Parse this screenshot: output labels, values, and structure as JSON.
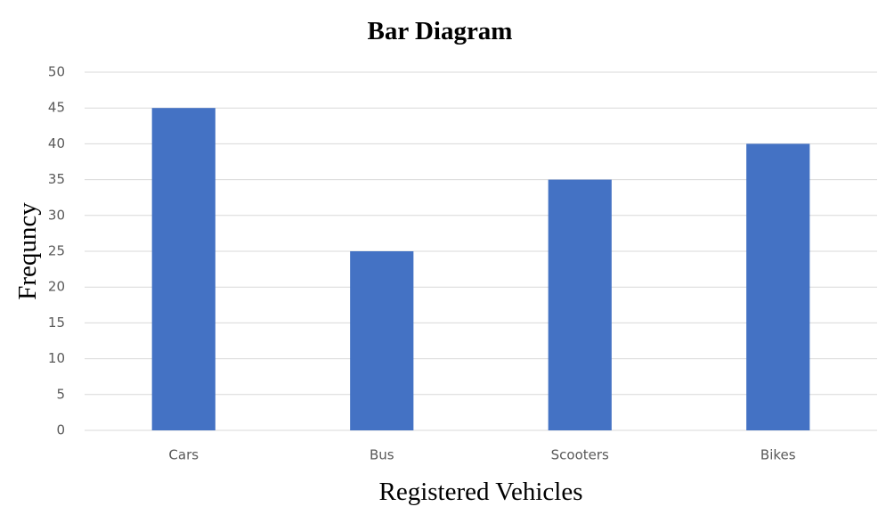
{
  "chart_data": {
    "type": "bar",
    "title": "Bar Diagram",
    "x_label": "Registered Vehicles",
    "y_label": "Frequncy",
    "categories": [
      "Cars",
      "Bus",
      "Scooters",
      "Bikes"
    ],
    "values": [
      45,
      25,
      35,
      40
    ],
    "color": "#4472c4",
    "ylim": [
      0,
      50
    ],
    "yticks": [
      0,
      5,
      10,
      15,
      20,
      25,
      30,
      35,
      40,
      45,
      50
    ],
    "grid": true
  }
}
